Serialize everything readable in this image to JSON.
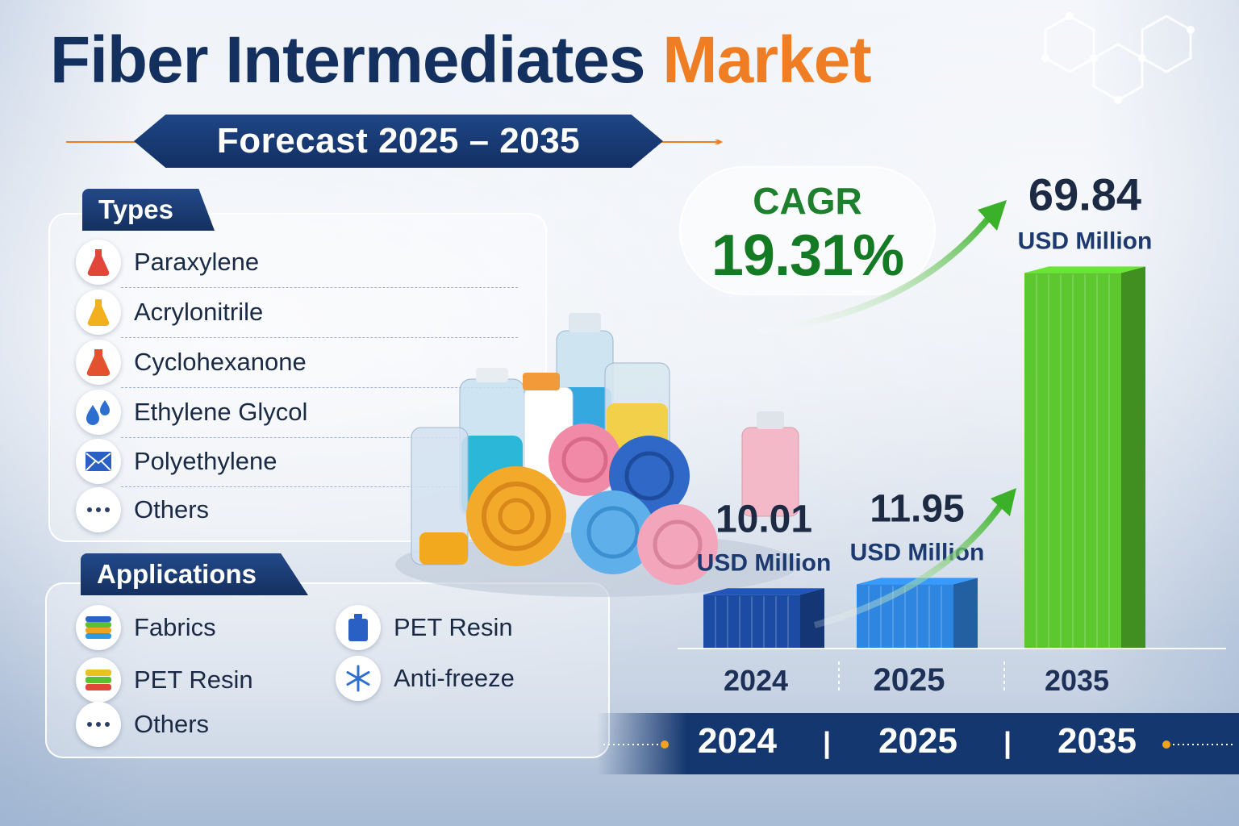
{
  "title": {
    "main": "Fiber Intermediates",
    "accent": "Market"
  },
  "forecast": "Forecast 2025 – 2035",
  "types": {
    "heading": "Types",
    "items": [
      {
        "label": "Paraxylene",
        "icon": "red-flask-icon",
        "color": "#e2463a"
      },
      {
        "label": "Acrylonitrile",
        "icon": "yellow-flask-icon",
        "color": "#f2b01e"
      },
      {
        "label": "Cyclohexanone",
        "icon": "orange-flask-icon",
        "color": "#e4512f"
      },
      {
        "label": "Ethylene Glycol",
        "icon": "water-drops-icon",
        "color": "#2d6fd1"
      },
      {
        "label": "Polyethylene",
        "icon": "envelope-icon",
        "color": "#2a5fc4"
      },
      {
        "label": "Others",
        "icon": "ellipsis-icon",
        "color": "#2b3f66"
      }
    ]
  },
  "applications": {
    "heading": "Applications",
    "items": [
      {
        "label": "Fabrics",
        "icon": "fabric-stack-icon"
      },
      {
        "label": "PET Resin",
        "icon": "resin-stack-icon"
      },
      {
        "label": "Others",
        "icon": "ellipsis-icon"
      },
      {
        "label": "PET Resin",
        "icon": "pet-bottle-icon"
      },
      {
        "label": "Anti-freeze",
        "icon": "snowflake-icon"
      }
    ]
  },
  "cagr": {
    "label": "CAGR",
    "value": "19.31%"
  },
  "chart_data": {
    "type": "bar",
    "categories": [
      "2024",
      "2025",
      "2035"
    ],
    "values": [
      10.01,
      11.95,
      69.84
    ],
    "value_labels": [
      "10.01",
      "11.95",
      "69.84"
    ],
    "unit": "USD Million",
    "colors": [
      "#1c4ba3",
      "#2f86e0",
      "#5cc72e"
    ],
    "ylim": [
      0,
      75
    ],
    "grid": false
  },
  "timeline": [
    "2024",
    "2025",
    "2035"
  ],
  "colors": {
    "navy": "#14305f",
    "orange": "#ee7d23",
    "green": "#157a24"
  }
}
